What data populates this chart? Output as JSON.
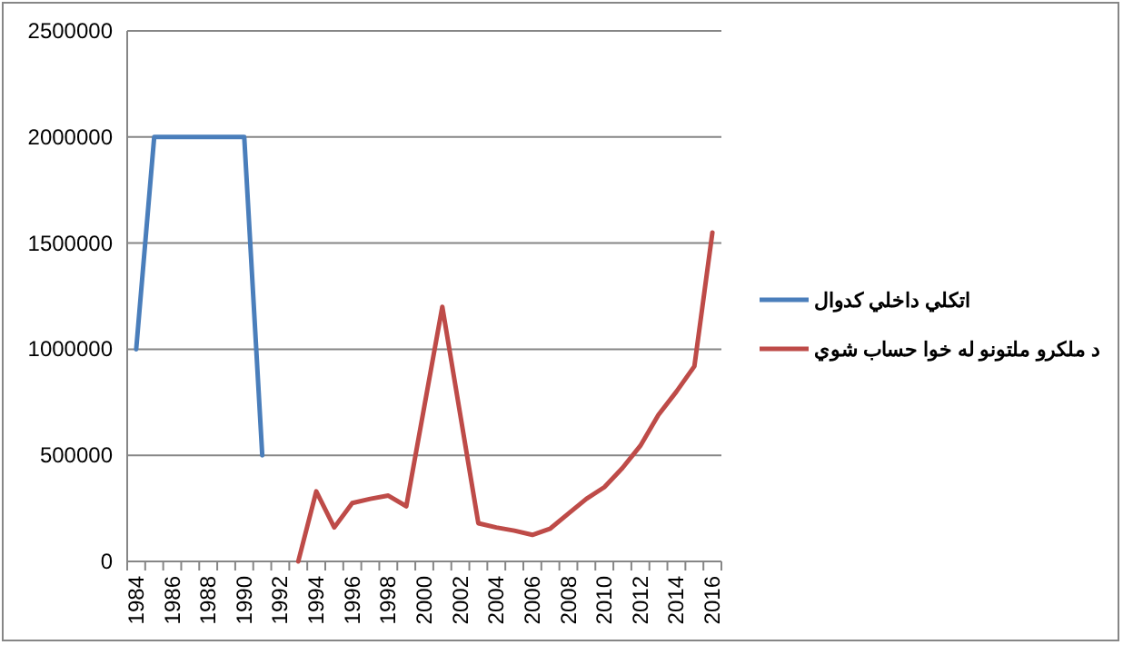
{
  "chart_data": {
    "type": "line",
    "categories": [
      "1984",
      null,
      "1986",
      null,
      "1988",
      null,
      "1990",
      null,
      "1992",
      null,
      "1994",
      null,
      "1996",
      null,
      "1998",
      null,
      "2000",
      null,
      "2002",
      null,
      "2004",
      null,
      "2006",
      null,
      "2008",
      null,
      "2010",
      null,
      "2012",
      null,
      "2014",
      null,
      "2016"
    ],
    "series": [
      {
        "name": "اتكلي داخلي كدوال",
        "color": "#4a7ebb",
        "values": [
          1000000,
          2000000,
          2000000,
          2000000,
          2000000,
          2000000,
          2000000,
          500000,
          null,
          null,
          null,
          null,
          null,
          null,
          null,
          null,
          null,
          null,
          null,
          null,
          null,
          null,
          null,
          null,
          null,
          null,
          null,
          null,
          null,
          null,
          null,
          null,
          null
        ]
      },
      {
        "name": "د ملكرو ملتونو له خوا حساب شوي",
        "color": "#be4b48",
        "values": [
          null,
          null,
          null,
          null,
          null,
          null,
          null,
          null,
          null,
          0,
          330000,
          160000,
          275000,
          295000,
          310000,
          260000,
          730000,
          1200000,
          690000,
          180000,
          160000,
          145000,
          125000,
          155000,
          225000,
          295000,
          350000,
          440000,
          545000,
          690000,
          800000,
          920000,
          1550000
        ]
      }
    ],
    "ylim": [
      0,
      2500000
    ],
    "yticks": [
      0,
      500000,
      1000000,
      1500000,
      2000000,
      2500000
    ],
    "grid": "y",
    "legend": "right",
    "marker": "none",
    "line_style": "solid"
  }
}
